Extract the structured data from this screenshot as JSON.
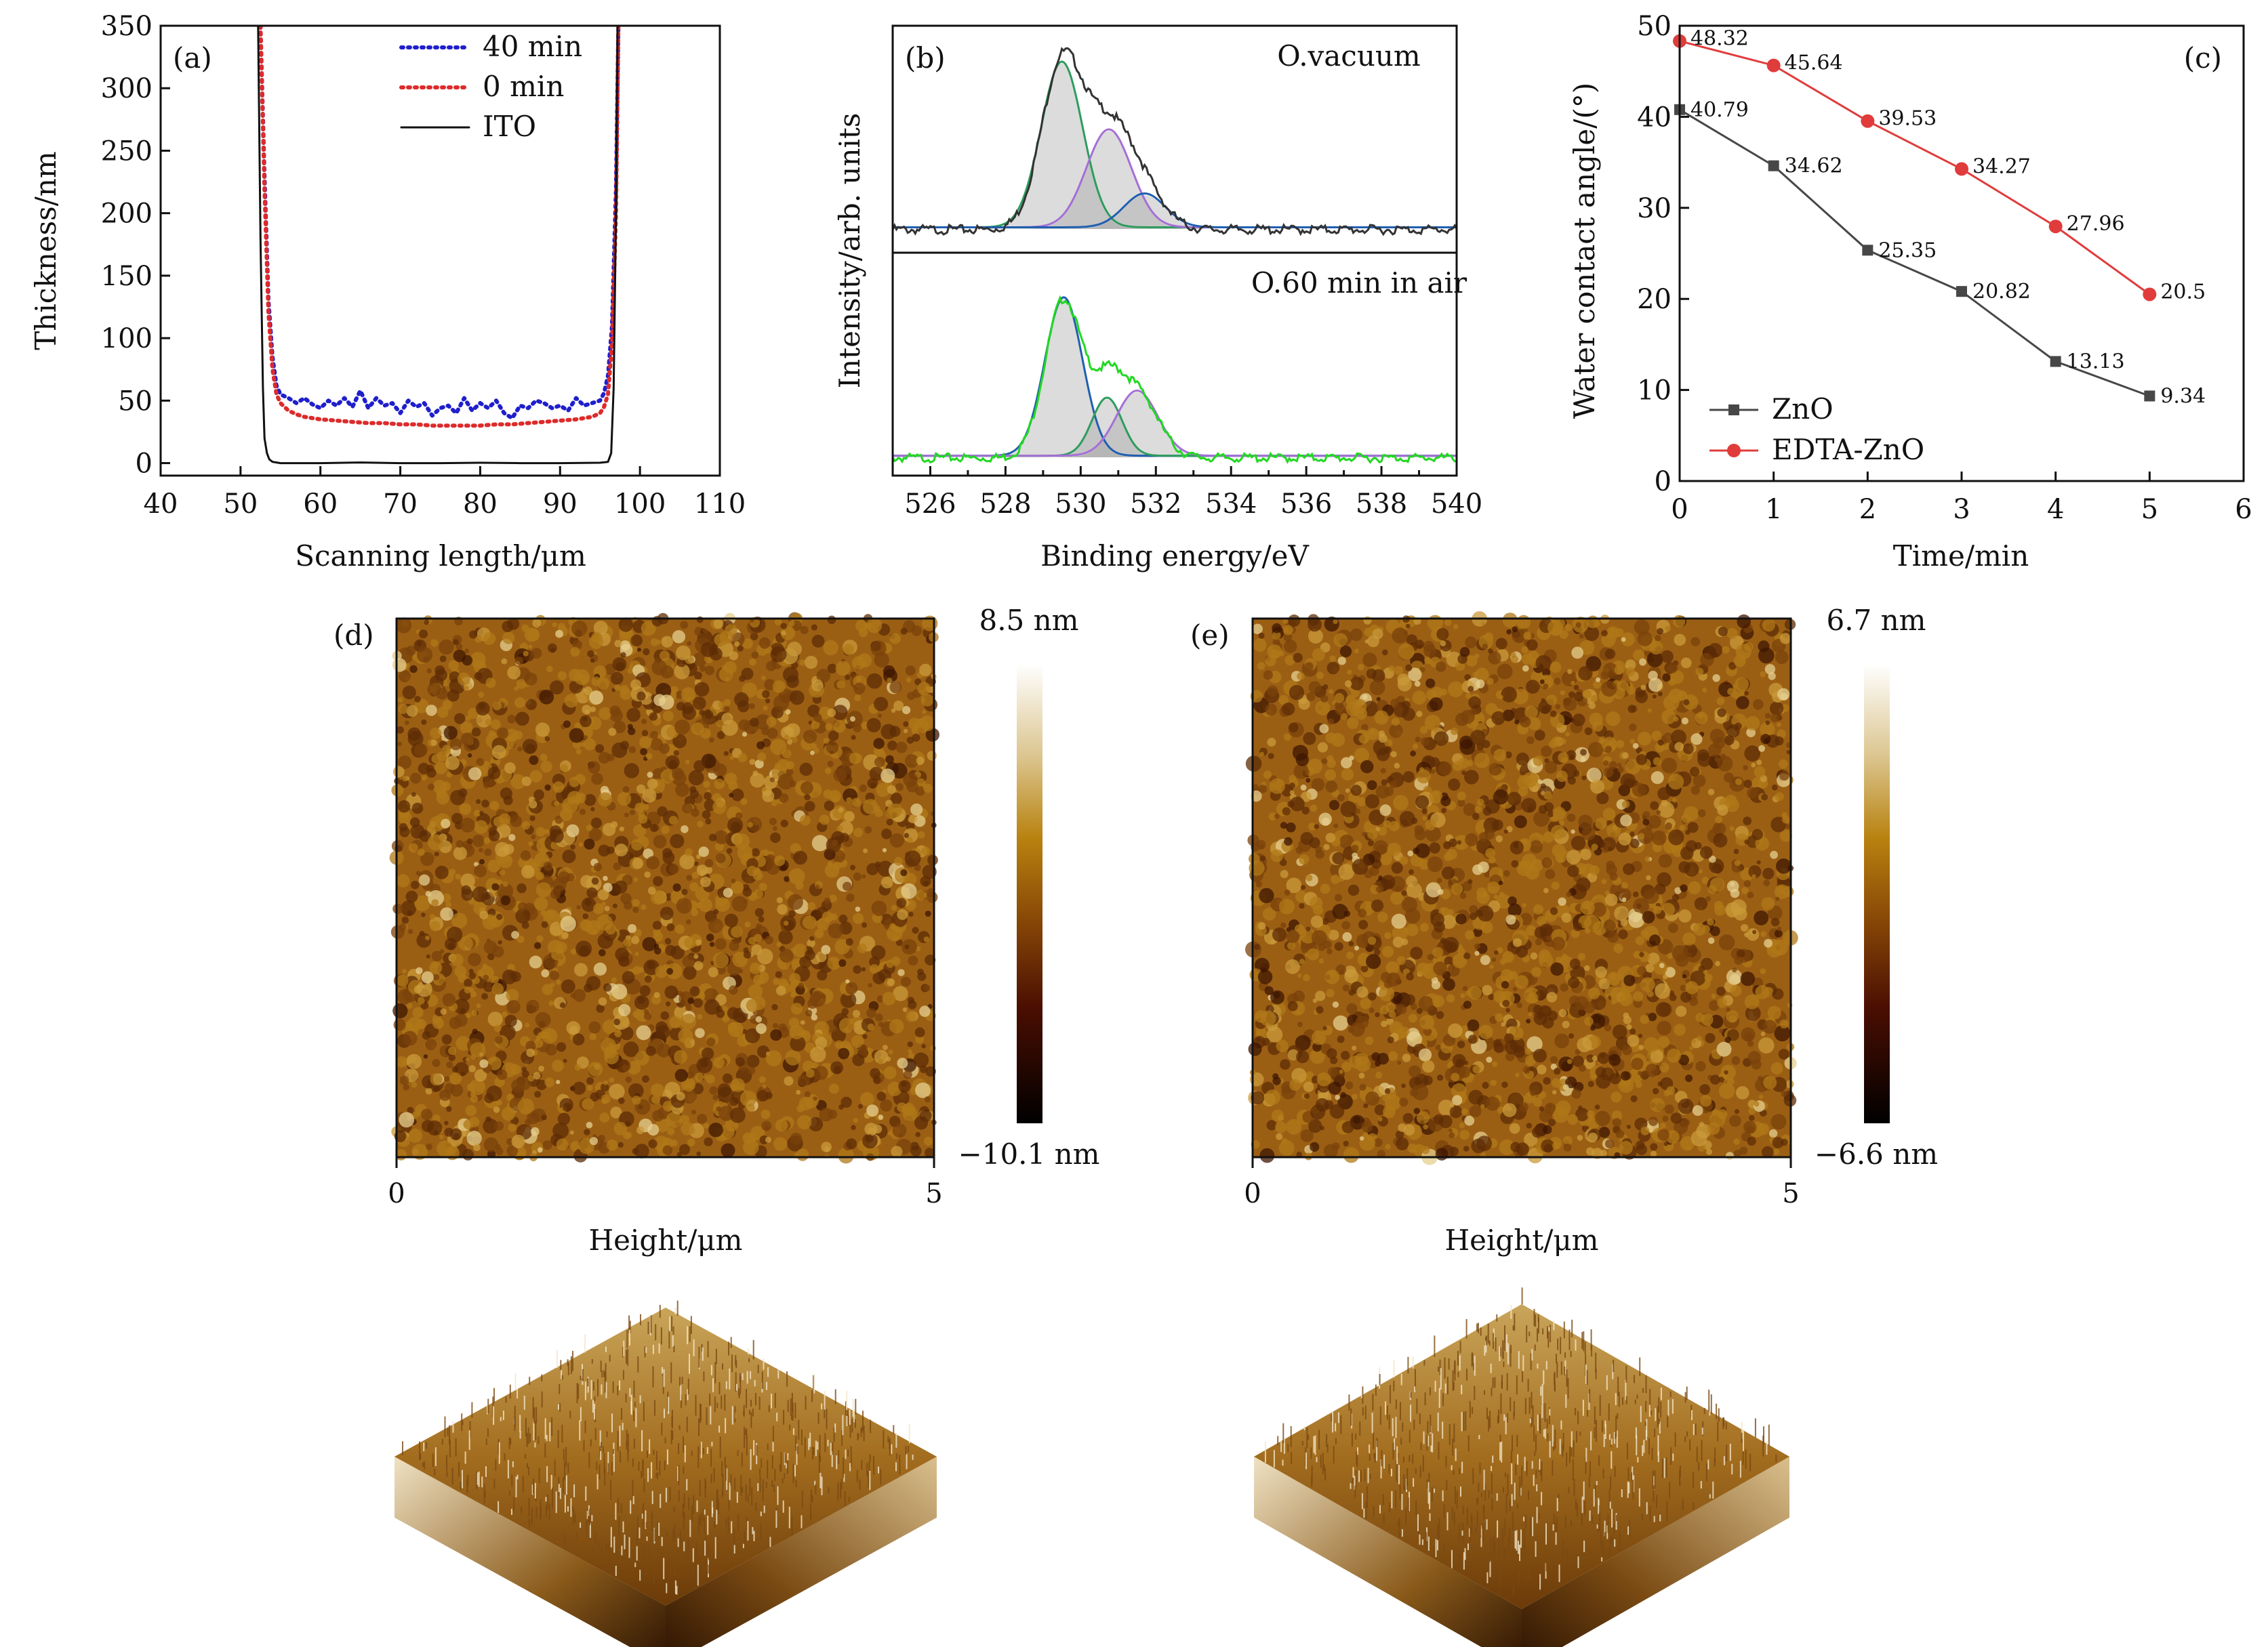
{
  "chart_data": [
    {
      "type": "line",
      "panel": "(a)",
      "xlabel": "Scanning length/μm",
      "ylabel": "Thickness/nm",
      "xlim": [
        40,
        110
      ],
      "ylim": [
        -10,
        350
      ],
      "xticks": [
        "40",
        "50",
        "60",
        "70",
        "80",
        "90",
        "100",
        "110"
      ],
      "yticks": [
        "0",
        "50",
        "100",
        "150",
        "200",
        "250",
        "300",
        "350"
      ],
      "legend_position": "top-center",
      "series": [
        {
          "name": "40 min",
          "color": "#1f1fcc",
          "style": "dotted",
          "x": [
            52.5,
            53.0,
            53.5,
            54.0,
            54.5,
            55.0,
            56.0,
            57.0,
            58.0,
            59.0,
            60.0,
            61.0,
            62.0,
            63.0,
            64.0,
            65.0,
            66.0,
            67.0,
            68.0,
            69.0,
            70.0,
            71.0,
            72.0,
            73.0,
            74.0,
            75.0,
            76.0,
            77.0,
            78.0,
            79.0,
            80.0,
            81.0,
            82.0,
            83.0,
            84.0,
            85.0,
            86.0,
            87.0,
            88.0,
            89.0,
            90.0,
            91.0,
            92.0,
            93.0,
            94.0,
            95.0,
            95.5,
            96.0,
            96.5,
            97.0,
            97.3
          ],
          "y": [
            350,
            230,
            130,
            85,
            62,
            55,
            52,
            48,
            52,
            47,
            44,
            50,
            46,
            52,
            45,
            58,
            44,
            52,
            46,
            48,
            40,
            50,
            45,
            48,
            38,
            44,
            46,
            40,
            52,
            42,
            48,
            44,
            50,
            40,
            36,
            46,
            44,
            50,
            48,
            44,
            46,
            42,
            52,
            46,
            48,
            50,
            56,
            70,
            110,
            220,
            350
          ]
        },
        {
          "name": "0 min",
          "color": "#dd2b2b",
          "style": "dotted",
          "x": [
            52.5,
            53.0,
            53.5,
            54.0,
            54.5,
            55.0,
            56.0,
            57.0,
            58.0,
            60.0,
            62.0,
            64.0,
            66.0,
            68.0,
            70.0,
            72.0,
            74.0,
            76.0,
            78.0,
            80.0,
            82.0,
            84.0,
            86.0,
            88.0,
            90.0,
            92.0,
            94.0,
            95.0,
            95.5,
            96.0,
            96.5,
            97.0,
            97.3
          ],
          "y": [
            350,
            220,
            120,
            75,
            55,
            48,
            42,
            39,
            37,
            35,
            34,
            33,
            32,
            32,
            31,
            31,
            30,
            30,
            30,
            30,
            31,
            31,
            32,
            33,
            34,
            35,
            37,
            40,
            45,
            55,
            95,
            200,
            350
          ]
        },
        {
          "name": "ITO",
          "color": "#111111",
          "style": "solid",
          "x": [
            52.2,
            52.5,
            52.8,
            53.0,
            53.3,
            53.6,
            54.0,
            54.5,
            55.0,
            60.0,
            65.0,
            70.0,
            75.0,
            80.0,
            85.0,
            90.0,
            95.0,
            96.0,
            96.4,
            96.7,
            97.0,
            97.2
          ],
          "y": [
            350,
            180,
            60,
            20,
            8,
            3,
            1,
            0.5,
            0,
            0,
            0.5,
            0,
            0,
            0.3,
            0,
            0,
            0.3,
            1,
            8,
            60,
            200,
            350
          ]
        }
      ]
    },
    {
      "type": "line",
      "panel": "(b)",
      "xlabel": "Binding energy/eV",
      "ylabel": "Intensity/arb. units",
      "xlim": [
        525,
        540
      ],
      "xticks": [
        "526",
        "528",
        "530",
        "532",
        "534",
        "536",
        "538",
        "540"
      ],
      "subplots": [
        {
          "label": "O.vacuum",
          "baseline": 0.03,
          "envelope_color": "#333333",
          "peaks": [
            {
              "center": 529.5,
              "amplitude": 0.88,
              "sigma": 0.55,
              "color": "#2e9c5e"
            },
            {
              "center": 530.75,
              "amplitude": 0.52,
              "sigma": 0.6,
              "color": "#a56fd6"
            },
            {
              "center": 531.7,
              "amplitude": 0.18,
              "sigma": 0.55,
              "color": "#1f5fb0"
            }
          ]
        },
        {
          "label": "O.60 min in air",
          "baseline": 0.03,
          "envelope_color": "#22d822",
          "peaks": [
            {
              "center": 529.55,
              "amplitude": 0.9,
              "sigma": 0.5,
              "color": "#1f5fb0"
            },
            {
              "center": 530.7,
              "amplitude": 0.33,
              "sigma": 0.4,
              "color": "#2e9c5e"
            },
            {
              "center": 531.5,
              "amplitude": 0.37,
              "sigma": 0.55,
              "color": "#a56fd6"
            }
          ]
        }
      ]
    },
    {
      "type": "line",
      "panel": "(c)",
      "xlabel": "Time/min",
      "ylabel": "Water contact angle/(°)",
      "xlim": [
        0,
        6
      ],
      "ylim": [
        0,
        50
      ],
      "xticks": [
        "0",
        "1",
        "2",
        "3",
        "4",
        "5",
        "6"
      ],
      "yticks": [
        "0",
        "10",
        "20",
        "30",
        "40",
        "50"
      ],
      "legend_position": "bottom-left",
      "x": [
        0,
        1,
        2,
        3,
        4,
        5
      ],
      "series": [
        {
          "name": "ZnO",
          "color": "#474747",
          "marker": "square",
          "values": [
            40.79,
            34.62,
            25.35,
            20.82,
            13.13,
            9.34
          ],
          "labels": [
            "40.79",
            "34.62",
            "25.35",
            "20.82",
            "13.13",
            "9.34"
          ]
        },
        {
          "name": "EDTA-ZnO",
          "color": "#e03c3c",
          "marker": "circle",
          "values": [
            48.32,
            45.64,
            39.53,
            34.27,
            27.96,
            20.5
          ],
          "labels": [
            "48.32",
            "45.64",
            "39.53",
            "34.27",
            "27.96",
            "20.5"
          ]
        }
      ]
    },
    {
      "type": "heatmap",
      "panel": "(d)",
      "xlabel": "Height/μm",
      "xticks": [
        "0",
        "5"
      ],
      "colorbar_max": "8.5 nm",
      "colorbar_min": "−10.1 nm"
    },
    {
      "type": "heatmap",
      "panel": "(e)",
      "xlabel": "Height/μm",
      "xticks": [
        "0",
        "5"
      ],
      "colorbar_max": "6.7 nm",
      "colorbar_min": "−6.6 nm"
    }
  ]
}
